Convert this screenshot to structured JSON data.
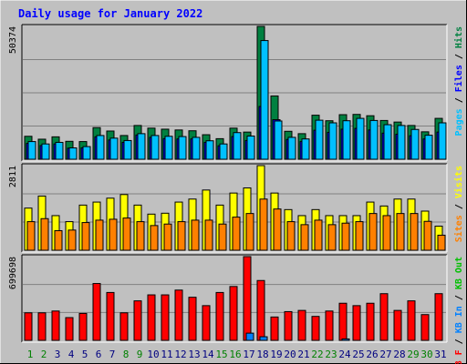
{
  "chart_data": {
    "type": "bar",
    "title": "Daily usage for January 2022",
    "categories": [
      "1",
      "2",
      "3",
      "4",
      "5",
      "6",
      "7",
      "8",
      "9",
      "10",
      "11",
      "12",
      "13",
      "14",
      "15",
      "16",
      "17",
      "18",
      "19",
      "20",
      "21",
      "22",
      "23",
      "24",
      "25",
      "26",
      "27",
      "28",
      "29",
      "30",
      "31"
    ],
    "weekend_days": [
      1,
      2,
      8,
      9,
      15,
      16,
      22,
      23,
      29,
      30
    ],
    "panels": [
      {
        "id": "hits",
        "ymax_label": "50374",
        "ymax": 50374,
        "series": [
          {
            "name": "Hits",
            "color": "#008040",
            "values": [
              8700,
              7600,
              8500,
              6800,
              6700,
              12000,
              10700,
              9000,
              12800,
              11800,
              11400,
              11100,
              10800,
              9300,
              7800,
              11800,
              10300,
              50374,
              24000,
              10600,
              9700,
              16700,
              14600,
              16900,
              17000,
              16500,
              14700,
              14100,
              12800,
              10400,
              15500
            ]
          },
          {
            "name": "Files",
            "color": "#0000ff",
            "values": [
              6000,
              5200,
              5800,
              4200,
              4300,
              8500,
              7300,
              6400,
              9200,
              8300,
              7800,
              7700,
              7700,
              6400,
              5100,
              8600,
              7100,
              20000,
              15000,
              7500,
              6700,
              11000,
              10200,
              11400,
              11700,
              11100,
              9900,
              9500,
              8900,
              7700,
              10300
            ]
          },
          {
            "name": "Pages",
            "color": "#00c0ff",
            "values": [
              6700,
              5800,
              6400,
              4300,
              4800,
              9000,
              8000,
              7100,
              9700,
              9000,
              8700,
              8600,
              8300,
              7000,
              5800,
              10100,
              8800,
              45000,
              14500,
              8300,
              7700,
              14800,
              13800,
              14600,
              15500,
              14700,
              13100,
              12800,
              11300,
              9100,
              13800
            ]
          }
        ]
      },
      {
        "id": "visits",
        "ymax_label": "2811",
        "ymax": 2811,
        "series": [
          {
            "name": "Visits",
            "color": "#ffff00",
            "values": [
              1400,
              1800,
              1150,
              950,
              1500,
              1600,
              1730,
              1850,
              1500,
              1200,
              1230,
              1600,
              1700,
              2000,
              1500,
              1900,
              2070,
              2811,
              1900,
              1350,
              1150,
              1350,
              1150,
              1150,
              1150,
              1600,
              1470,
              1700,
              1700,
              1300,
              800
            ]
          },
          {
            "name": "Sites",
            "color": "#ff8000",
            "values": [
              950,
              1050,
              650,
              670,
              920,
              1000,
              1030,
              1070,
              950,
              820,
              870,
              950,
              1000,
              1000,
              870,
              1100,
              1220,
              1700,
              1370,
              950,
              850,
              1000,
              850,
              900,
              950,
              1220,
              1150,
              1220,
              1220,
              960,
              500
            ]
          }
        ]
      },
      {
        "id": "kbytes",
        "ymax_label": "699698",
        "ymax": 699698,
        "series": [
          {
            "name": "KB F",
            "color": "#ff0000",
            "values": [
              230000,
              230000,
              245000,
              190000,
              225000,
              475000,
              400000,
              230000,
              330000,
              380000,
              380000,
              420000,
              360000,
              290000,
              400000,
              450000,
              699698,
              500000,
              195000,
              240000,
              250000,
              200000,
              245000,
              310000,
              290000,
              310000,
              390000,
              250000,
              330000,
              215000,
              390000
            ]
          },
          {
            "name": "KB In",
            "color": "#0080ff",
            "values": [
              0,
              0,
              0,
              0,
              0,
              0,
              0,
              0,
              0,
              0,
              0,
              0,
              0,
              0,
              0,
              0,
              60000,
              30000,
              0,
              0,
              0,
              0,
              0,
              12000,
              0,
              0,
              0,
              0,
              0,
              0,
              0
            ]
          }
        ]
      }
    ],
    "legend": {
      "hits_panel": [
        {
          "text": "Pages",
          "color": "#00c0ff"
        },
        {
          "text": " / ",
          "color": "#000000"
        },
        {
          "text": "Files",
          "color": "#0000ff"
        },
        {
          "text": " / ",
          "color": "#000000"
        },
        {
          "text": "Hits",
          "color": "#008040"
        }
      ],
      "visits_panel": [
        {
          "text": "Sites",
          "color": "#ff8000"
        },
        {
          "text": " / ",
          "color": "#000000"
        },
        {
          "text": "Visits",
          "color": "#ffff00"
        }
      ],
      "kbytes_panel": [
        {
          "text": "KB F",
          "color": "#ff0000"
        },
        {
          "text": " / ",
          "color": "#000000"
        },
        {
          "text": "KB In",
          "color": "#0080ff"
        },
        {
          "text": " / ",
          "color": "#000000"
        },
        {
          "text": "KB Out",
          "color": "#00c000"
        }
      ]
    },
    "colors": {
      "title": "#0000ff",
      "weekday_label": "#000080",
      "weekend_label": "#008000",
      "background": "#c0c0c0",
      "plot_bg": "#c0c0c0"
    },
    "grid": true
  }
}
